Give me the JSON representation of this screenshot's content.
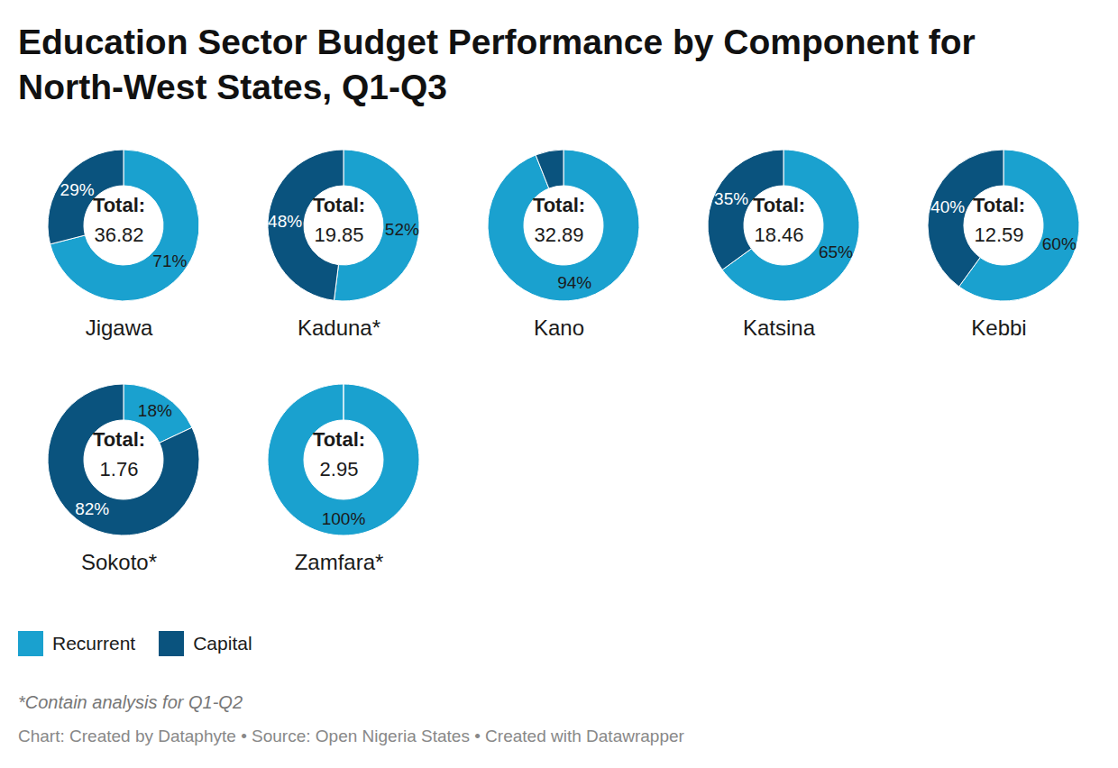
{
  "title": "Education Sector Budget Performance by Component for North-West States, Q1-Q3",
  "center_label": "Total:",
  "series": [
    {
      "name": "Recurrent",
      "color": "#1aa1cf"
    },
    {
      "name": "Capital",
      "color": "#0a537e"
    }
  ],
  "footnote": "*Contain analysis for Q1-Q2",
  "source": "Chart: Created by Dataphyte • Source: Open Nigeria States • Created with Datawrapper",
  "chart_data": [
    {
      "type": "pie",
      "title": "Jigawa",
      "total": 36.82,
      "categories": [
        "Recurrent",
        "Capital"
      ],
      "values": [
        71,
        29
      ],
      "value_labels": [
        "71%",
        "29%"
      ],
      "colors": [
        "#1aa1cf",
        "#0a537e"
      ],
      "data_labels": true
    },
    {
      "type": "pie",
      "title": "Kaduna*",
      "total": 19.85,
      "categories": [
        "Recurrent",
        "Capital"
      ],
      "values": [
        52,
        48
      ],
      "value_labels": [
        "52%",
        "48%"
      ],
      "colors": [
        "#1aa1cf",
        "#0a537e"
      ],
      "data_labels": true
    },
    {
      "type": "pie",
      "title": "Kano",
      "total": 32.89,
      "categories": [
        "Recurrent",
        "Capital"
      ],
      "values": [
        94,
        6
      ],
      "value_labels": [
        "94%",
        null
      ],
      "colors": [
        "#1aa1cf",
        "#0a537e"
      ],
      "data_labels": true
    },
    {
      "type": "pie",
      "title": "Katsina",
      "total": 18.46,
      "categories": [
        "Recurrent",
        "Capital"
      ],
      "values": [
        65,
        35
      ],
      "value_labels": [
        "65%",
        "35%"
      ],
      "colors": [
        "#1aa1cf",
        "#0a537e"
      ],
      "data_labels": true
    },
    {
      "type": "pie",
      "title": "Kebbi",
      "total": 12.59,
      "categories": [
        "Recurrent",
        "Capital"
      ],
      "values": [
        60,
        40
      ],
      "value_labels": [
        "60%",
        "40%"
      ],
      "colors": [
        "#1aa1cf",
        "#0a537e"
      ],
      "data_labels": true
    },
    {
      "type": "pie",
      "title": "Sokoto*",
      "total": 1.76,
      "categories": [
        "Recurrent",
        "Capital"
      ],
      "values": [
        18,
        82
      ],
      "value_labels": [
        "18%",
        "82%"
      ],
      "colors": [
        "#1aa1cf",
        "#0a537e"
      ],
      "data_labels": true
    },
    {
      "type": "pie",
      "title": "Zamfara*",
      "total": 2.95,
      "categories": [
        "Recurrent",
        "Capital"
      ],
      "values": [
        100,
        0
      ],
      "value_labels": [
        "100%",
        null
      ],
      "colors": [
        "#1aa1cf",
        "#0a537e"
      ],
      "data_labels": true
    }
  ]
}
